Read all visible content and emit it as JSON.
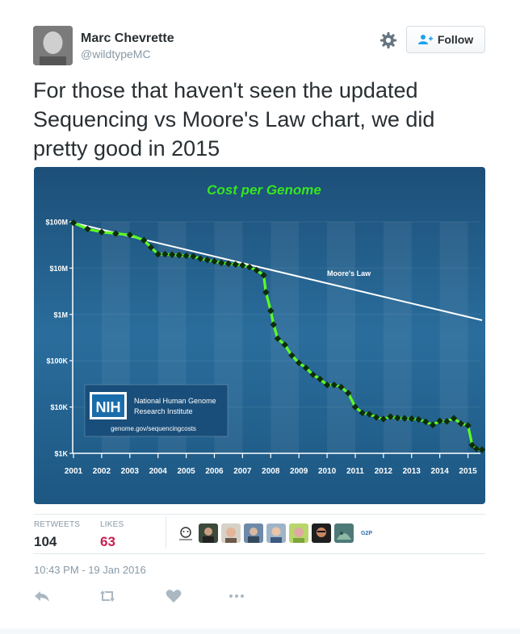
{
  "author": {
    "name": "Marc Chevrette",
    "handle": "@wildtypeMC"
  },
  "follow_label": "Follow",
  "tweet_text": "For those that haven't seen the updated Sequencing vs Moore's Law chart, we did pretty good in 2015",
  "stats": {
    "retweets_label": "RETWEETS",
    "retweets": "104",
    "likes_label": "LIKES",
    "likes": "63"
  },
  "liker_avatars": [
    "liker-avatar-1",
    "liker-avatar-2",
    "liker-avatar-3",
    "liker-avatar-4",
    "liker-avatar-5",
    "liker-avatar-6",
    "liker-avatar-7",
    "liker-avatar-8"
  ],
  "liker_more_text": "G2P",
  "timestamp": "10:43 PM - 19 Jan 2016",
  "actions": [
    "reply-icon",
    "retweet-icon",
    "like-icon",
    "more-icon"
  ],
  "colors": {
    "accent": "#1da1f2",
    "stat_value": "#292f33",
    "chart_bg": "#1f5b86",
    "series_green": "#5cff22",
    "title_green": "#37e61f"
  },
  "chart_data": {
    "type": "line",
    "title": "Cost per Genome",
    "y_scale": "log",
    "ylim": [
      1000,
      100000000
    ],
    "y_ticks": [
      {
        "v": 100000000,
        "label": "$100M"
      },
      {
        "v": 10000000,
        "label": "$10M"
      },
      {
        "v": 1000000,
        "label": "$1M"
      },
      {
        "v": 100000,
        "label": "$100K"
      },
      {
        "v": 10000,
        "label": "$10K"
      },
      {
        "v": 1000,
        "label": "$1K"
      }
    ],
    "xlim": [
      2001,
      2015.5
    ],
    "x_ticks": [
      2001,
      2002,
      2003,
      2004,
      2005,
      2006,
      2007,
      2008,
      2009,
      2010,
      2011,
      2012,
      2013,
      2014,
      2015
    ],
    "x_tick_labels": [
      "2001",
      "2002",
      "2003",
      "2004",
      "2005",
      "2006",
      "2007",
      "2008",
      "2009",
      "2010",
      "2011",
      "2012",
      "2013",
      "2014",
      "2015"
    ],
    "series": [
      {
        "values": [
          [
            2001.0,
            95000000
          ],
          [
            2001.5,
            70000000
          ],
          [
            2002.0,
            60000000
          ],
          [
            2002.5,
            56000000
          ],
          [
            2003.0,
            52000000
          ],
          [
            2003.5,
            40000000
          ],
          [
            2003.75,
            28000000
          ],
          [
            2004.0,
            20000000
          ],
          [
            2004.25,
            20000000
          ],
          [
            2004.5,
            19500000
          ],
          [
            2004.75,
            19000000
          ],
          [
            2005.0,
            18500000
          ],
          [
            2005.25,
            18000000
          ],
          [
            2005.5,
            16000000
          ],
          [
            2005.75,
            15000000
          ],
          [
            2006.0,
            14000000
          ],
          [
            2006.25,
            13000000
          ],
          [
            2006.5,
            12500000
          ],
          [
            2006.75,
            12000000
          ],
          [
            2007.0,
            11500000
          ],
          [
            2007.25,
            10500000
          ],
          [
            2007.5,
            9000000
          ],
          [
            2007.75,
            7000000
          ],
          [
            2007.83,
            3000000
          ],
          [
            2008.0,
            1200000
          ],
          [
            2008.1,
            600000
          ],
          [
            2008.25,
            300000
          ],
          [
            2008.5,
            220000
          ],
          [
            2008.75,
            130000
          ],
          [
            2009.0,
            90000
          ],
          [
            2009.25,
            70000
          ],
          [
            2009.5,
            50000
          ],
          [
            2009.75,
            40000
          ],
          [
            2010.0,
            30000
          ],
          [
            2010.25,
            30000
          ],
          [
            2010.5,
            27000
          ],
          [
            2010.75,
            20000
          ],
          [
            2011.0,
            10000
          ],
          [
            2011.25,
            7500
          ],
          [
            2011.5,
            7000
          ],
          [
            2011.75,
            6000
          ],
          [
            2012.0,
            5500
          ],
          [
            2012.25,
            6200
          ],
          [
            2012.5,
            5800
          ],
          [
            2012.75,
            5700
          ],
          [
            2013.0,
            5600
          ],
          [
            2013.25,
            5400
          ],
          [
            2013.5,
            4800
          ],
          [
            2013.75,
            4100
          ],
          [
            2014.0,
            5000
          ],
          [
            2014.25,
            4900
          ],
          [
            2014.5,
            5700
          ],
          [
            2014.75,
            4400
          ],
          [
            2015.0,
            4000
          ],
          [
            2015.15,
            1500
          ],
          [
            2015.3,
            1250
          ],
          [
            2015.5,
            1200
          ]
        ]
      },
      {
        "name": "Moore's Law",
        "values": [
          [
            2001.0,
            95000000
          ],
          [
            2015.5,
            750000
          ]
        ]
      }
    ],
    "logo_text": "NIH",
    "logo_line1": "National Human Genome",
    "logo_line2": "Research Institute",
    "logo_url": "genome.gov/sequencingcosts"
  }
}
